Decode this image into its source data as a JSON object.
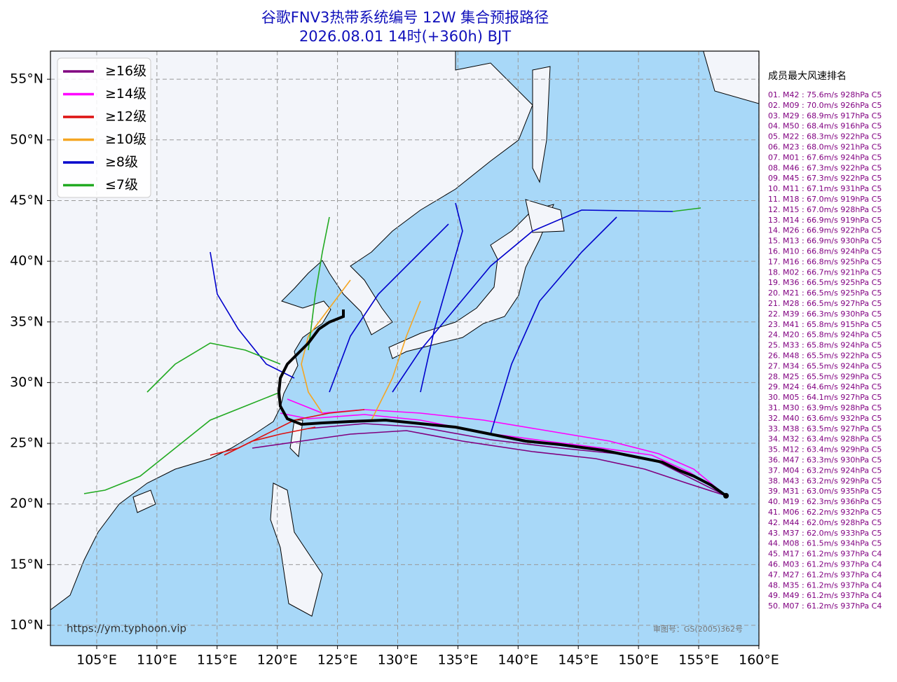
{
  "header": {
    "title": "谷歌FNV3热带系统编号 12W 集合预报路径",
    "subtitle": "2026.08.01 14时(+360h) BJT"
  },
  "legend": [
    {
      "label": "≥16级",
      "color": "#800080"
    },
    {
      "label": "≥14级",
      "color": "#ff00ff"
    },
    {
      "label": "≥12级",
      "color": "#dd1111"
    },
    {
      "label": "≥10级",
      "color": "#f5a623"
    },
    {
      "label": "≥8级",
      "color": "#0000cc"
    },
    {
      "label": "≤7级",
      "color": "#22aa22"
    }
  ],
  "map": {
    "grid": true,
    "lon_ticks": [
      {
        "value": 105,
        "label": "105°E"
      },
      {
        "value": 110,
        "label": "110°E"
      },
      {
        "value": 115,
        "label": "115°E"
      },
      {
        "value": 120,
        "label": "120°E"
      },
      {
        "value": 125,
        "label": "125°E"
      },
      {
        "value": 130,
        "label": "130°E"
      },
      {
        "value": 135,
        "label": "135°E"
      },
      {
        "value": 140,
        "label": "140°E"
      },
      {
        "value": 145,
        "label": "145°E"
      },
      {
        "value": 150,
        "label": "150°E"
      },
      {
        "value": 155,
        "label": "155°E"
      },
      {
        "value": 160,
        "label": "160°E"
      }
    ],
    "lat_ticks": [
      {
        "value": 10,
        "label": "10°N"
      },
      {
        "value": 15,
        "label": "15°N"
      },
      {
        "value": 20,
        "label": "20°N"
      },
      {
        "value": 25,
        "label": "25°N"
      },
      {
        "value": 30,
        "label": "30°N"
      },
      {
        "value": 35,
        "label": "35°N"
      },
      {
        "value": 40,
        "label": "40°N"
      },
      {
        "value": 45,
        "label": "45°N"
      },
      {
        "value": 50,
        "label": "50°N"
      },
      {
        "value": 55,
        "label": "55°N"
      }
    ],
    "watermark": "https://ym.typhoon.vip",
    "approval": "审图号：GS(2005)362号"
  },
  "ranking": {
    "title": "成员最大风速排名",
    "items": [
      "01. M42 : 75.6m/s 928hPa C5",
      "02. M09 : 70.0m/s 926hPa C5",
      "03. M29 : 68.9m/s 917hPa C5",
      "04. M50 : 68.4m/s 916hPa C5",
      "05. M22 : 68.3m/s 922hPa C5",
      "06. M23 : 68.0m/s 921hPa C5",
      "07. M01 : 67.6m/s 924hPa C5",
      "08. M46 : 67.3m/s 922hPa C5",
      "09. M45 : 67.3m/s 922hPa C5",
      "10. M11 : 67.1m/s 931hPa C5",
      "11. M18 : 67.0m/s 919hPa C5",
      "12. M15 : 67.0m/s 928hPa C5",
      "13. M14 : 66.9m/s 919hPa C5",
      "14. M26 : 66.9m/s 922hPa C5",
      "15. M13 : 66.9m/s 930hPa C5",
      "16. M10 : 66.8m/s 924hPa C5",
      "17. M16 : 66.8m/s 925hPa C5",
      "18. M02 : 66.7m/s 921hPa C5",
      "19. M36 : 66.5m/s 925hPa C5",
      "20. M21 : 66.5m/s 925hPa C5",
      "21. M28 : 66.5m/s 927hPa C5",
      "22. M39 : 66.3m/s 930hPa C5",
      "23. M41 : 65.8m/s 915hPa C5",
      "24. M20 : 65.8m/s 924hPa C5",
      "25. M33 : 65.8m/s 924hPa C5",
      "26. M48 : 65.5m/s 922hPa C5",
      "27. M34 : 65.5m/s 924hPa C5",
      "28. M25 : 65.5m/s 929hPa C5",
      "29. M24 : 64.6m/s 924hPa C5",
      "30. M05 : 64.1m/s 927hPa C5",
      "31. M30 : 63.9m/s 928hPa C5",
      "32. M40 : 63.6m/s 932hPa C5",
      "33. M38 : 63.5m/s 927hPa C5",
      "34. M32 : 63.4m/s 928hPa C5",
      "35. M12 : 63.4m/s 929hPa C5",
      "36. M47 : 63.3m/s 930hPa C5",
      "37. M04 : 63.2m/s 924hPa C5",
      "38. M43 : 63.2m/s 929hPa C5",
      "39. M31 : 63.0m/s 935hPa C5",
      "40. M19 : 62.3m/s 936hPa C5",
      "41. M06 : 62.2m/s 932hPa C5",
      "42. M44 : 62.0m/s 928hPa C5",
      "43. M37 : 62.0m/s 933hPa C5",
      "44. M08 : 61.5m/s 934hPa C5",
      "45. M17 : 61.2m/s 937hPa C4",
      "46. M03 : 61.2m/s 937hPa C4",
      "47. M27 : 61.2m/s 937hPa C4",
      "48. M35 : 61.2m/s 937hPa C4",
      "49. M49 : 61.2m/s 937hPa C4",
      "50. M07 : 61.2m/s 937hPa C4"
    ]
  }
}
